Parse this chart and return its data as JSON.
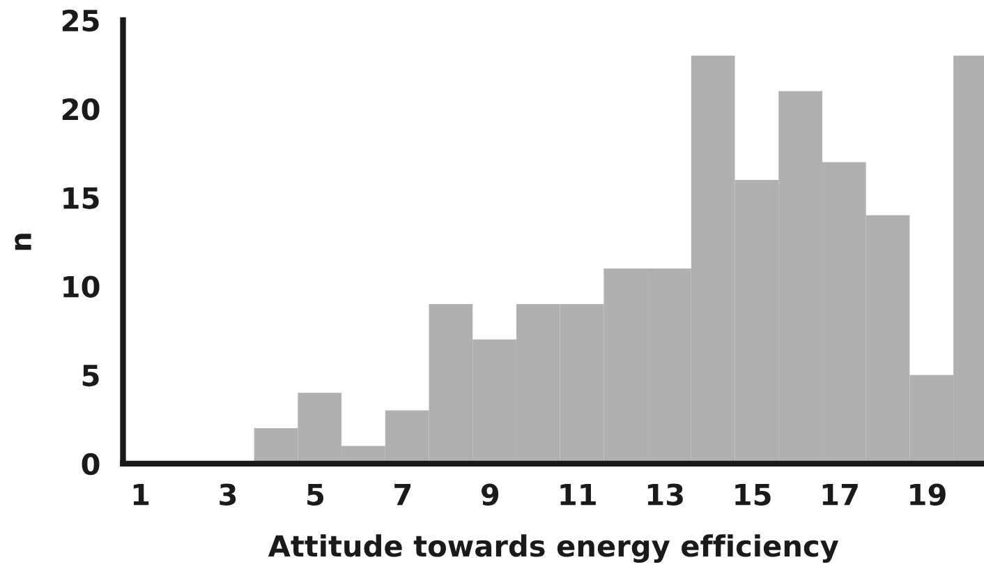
{
  "chart_data": {
    "type": "histogram",
    "xlabel": "Attitude towards energy efficiency",
    "ylabel": "n",
    "bins": [
      3.6,
      4.6,
      5.6,
      6.6,
      7.6,
      8.6,
      9.6,
      10.6,
      11.6,
      12.6,
      13.6,
      14.6,
      15.6,
      16.6,
      17.6,
      18.6,
      19.6,
      20.6
    ],
    "values": [
      2,
      4,
      1,
      3,
      9,
      7,
      9,
      9,
      11,
      11,
      23,
      16,
      21,
      17,
      14,
      5,
      23
    ],
    "color": "#b0b0b0",
    "xlim": [
      0.6,
      20.3
    ],
    "xticks": [
      1,
      3,
      5,
      7,
      9,
      11,
      13,
      15,
      17,
      19
    ],
    "ylim": [
      0,
      25
    ],
    "yticks": [
      0,
      5,
      10,
      15,
      20,
      25
    ],
    "grid": false
  }
}
